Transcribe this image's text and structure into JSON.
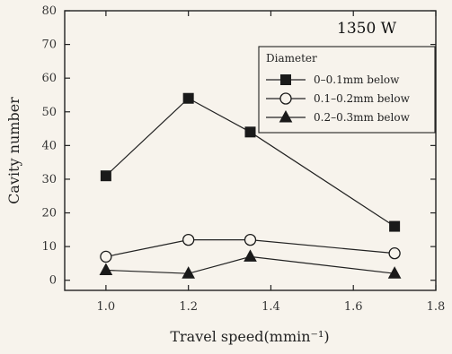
{
  "chart_data": {
    "type": "line",
    "title": "",
    "annotation": "1350 W",
    "xlabel": "Travel speed(mmin⁻¹)",
    "ylabel": "Cavity number",
    "xlim": [
      0.9,
      1.8
    ],
    "ylim": [
      -3,
      80
    ],
    "xticks": [
      1.0,
      1.2,
      1.4,
      1.6,
      1.8
    ],
    "xtick_labels": [
      "1.0",
      "1.2",
      "1.4",
      "1.6",
      "1.8"
    ],
    "yticks": [
      0,
      10,
      20,
      30,
      40,
      50,
      60,
      70,
      80
    ],
    "ytick_labels": [
      "0",
      "10",
      "20",
      "30",
      "40",
      "50",
      "60",
      "70",
      "80"
    ],
    "grid": false,
    "legend_title": "Diameter",
    "legend_position": "top-right",
    "series": [
      {
        "name": "0–0.1mm below",
        "marker": "filled-square",
        "x": [
          1.0,
          1.2,
          1.35,
          1.7
        ],
        "y": [
          31,
          54,
          44,
          16
        ]
      },
      {
        "name": "0.1–0.2mm below",
        "marker": "open-circle",
        "x": [
          1.0,
          1.2,
          1.35,
          1.7
        ],
        "y": [
          7,
          12,
          12,
          8
        ]
      },
      {
        "name": "0.2–0.3mm below",
        "marker": "filled-triangle",
        "x": [
          1.0,
          1.2,
          1.35,
          1.7
        ],
        "y": [
          3,
          2,
          7,
          2
        ]
      }
    ]
  }
}
